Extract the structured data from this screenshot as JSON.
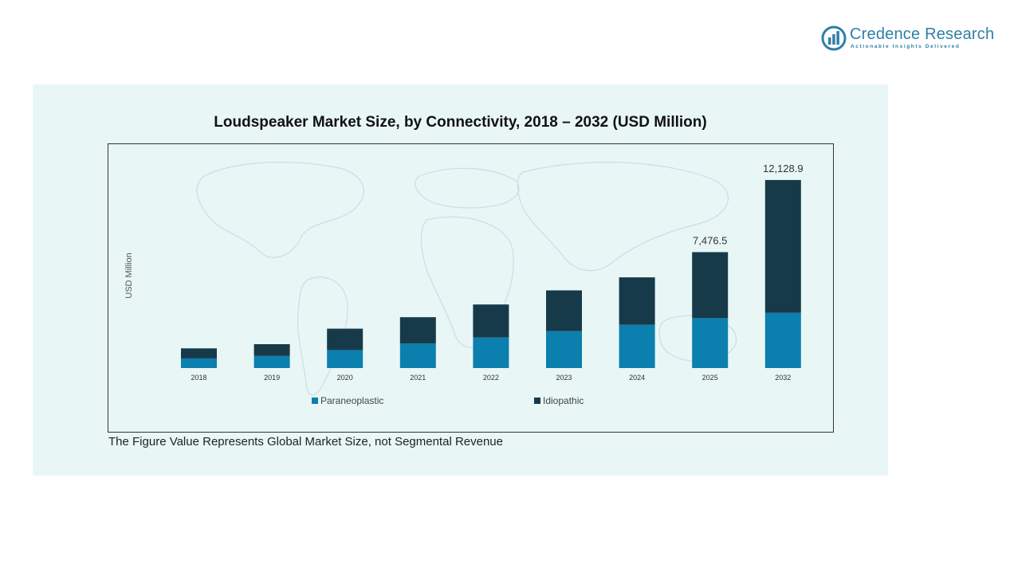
{
  "brand": {
    "name": "Credence Research",
    "tagline": "Actionable Insights Delivered",
    "logo_icon": "bar-chart-circle-icon",
    "color": "#2e7fa6"
  },
  "footnote": "The Figure Value Represents Global Market Size, not Segmental Revenue",
  "colors": {
    "panel_bg": "#e8f6f6",
    "paraneoplastic": "#0b7fae",
    "idiopathic": "#173a4a"
  },
  "chart_data": {
    "type": "bar",
    "stacked": true,
    "title": "Loudspeaker Market Size, by Connectivity, 2018 – 2032 (USD Million)",
    "xlabel": "",
    "ylabel": "USD Million",
    "categories": [
      "2018",
      "2019",
      "2020",
      "2021",
      "2022",
      "2023",
      "2024",
      "2025",
      "2032"
    ],
    "series": [
      {
        "name": "Paraneoplastic",
        "color": "#0b7fae",
        "values": [
          620,
          780,
          1160,
          1580,
          1970,
          2380,
          2790,
          3220,
          3560
        ]
      },
      {
        "name": "Idiopathic",
        "color": "#173a4a",
        "values": [
          650,
          760,
          1380,
          1700,
          2130,
          2630,
          3060,
          4256.5,
          8568.9
        ]
      }
    ],
    "data_labels": [
      {
        "category": "2025",
        "text": "7,476.5"
      },
      {
        "category": "2032",
        "text": "12,128.9"
      }
    ],
    "ylim": [
      0,
      13000
    ],
    "grid": false,
    "legend": "bottom",
    "background_image": "world-map"
  }
}
